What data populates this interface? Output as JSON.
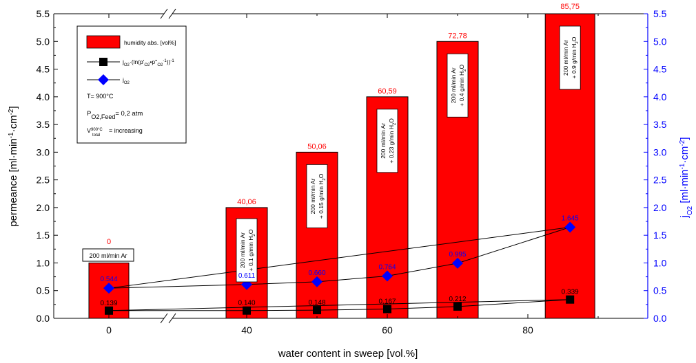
{
  "chart_data": {
    "type": "bar",
    "xlabel": "water content in sweep [vol.%]",
    "ylabel_left": "permeance [ml·min⁻¹·cm⁻²]",
    "ylabel_right": "j_O2 [ml·min⁻¹·cm⁻²]",
    "ylim": [
      0,
      5.5
    ],
    "y2lim": [
      0,
      5.5
    ],
    "yticks": [
      0.0,
      0.5,
      1.0,
      1.5,
      2.0,
      2.5,
      3.0,
      3.5,
      4.0,
      4.5,
      5.0,
      5.5
    ],
    "xticks": [
      0,
      40,
      60,
      80
    ],
    "axis_break_on_x": true,
    "grid": false,
    "legend_placement": "top-left",
    "colors": {
      "bar": "#ff0000",
      "permeance_marker": "#000000",
      "jo2_marker": "#0000ff",
      "right_axis": "#0000ff",
      "bar_label": "#ff0000"
    },
    "bars": [
      {
        "x": 0,
        "height": 1.0,
        "top_label": "0",
        "conditions": [
          "200 ml/min Ar"
        ]
      },
      {
        "x": 40,
        "height": 2.0,
        "top_label": "40,06",
        "conditions": [
          "200 ml/min Ar",
          "+ 0.1 g/min H₂O"
        ]
      },
      {
        "x": 50,
        "height": 3.0,
        "top_label": "50,06",
        "conditions": [
          "200 ml/min Ar",
          "+ 0.15 g/min H₂O"
        ]
      },
      {
        "x": 60,
        "height": 4.0,
        "top_label": "60,59",
        "conditions": [
          "200 ml/min Ar",
          "+ 0.23 g/min H₂O"
        ]
      },
      {
        "x": 70,
        "height": 5.0,
        "top_label": "72,78",
        "conditions": [
          "200 ml/min Ar",
          "+ 0.4 g/min H₂O"
        ]
      },
      {
        "x": 86,
        "height": 5.5,
        "top_label": "85,75",
        "conditions": [
          "200 ml/min Ar",
          "+ 0.9 g/min H₂O"
        ]
      }
    ],
    "series": [
      {
        "name": "j_O2·(ln(p'_O2•p''_O2⁻¹))⁻¹",
        "marker": "square",
        "x": [
          0,
          40,
          50,
          60,
          70,
          86
        ],
        "values": [
          0.139,
          0.14,
          0.148,
          0.167,
          0.212,
          0.339
        ],
        "labels": [
          "0.139",
          "0.140",
          "0.148",
          "0.167",
          "0.212",
          "0.339"
        ]
      },
      {
        "name": "j_O2",
        "marker": "diamond",
        "x": [
          0,
          40,
          50,
          60,
          70,
          86
        ],
        "values": [
          0.544,
          0.611,
          0.66,
          0.764,
          0.995,
          1.645
        ],
        "labels": [
          "0.544",
          "0.611",
          "0.660",
          "0.764",
          "0.995",
          "1.645"
        ]
      }
    ],
    "legend": {
      "bar_label": "humidity abs. [vol%]",
      "notes": [
        "T= 900°C",
        "P_O2,Feed= 0,2 atm",
        "V_total^900°C = increasing"
      ]
    }
  }
}
